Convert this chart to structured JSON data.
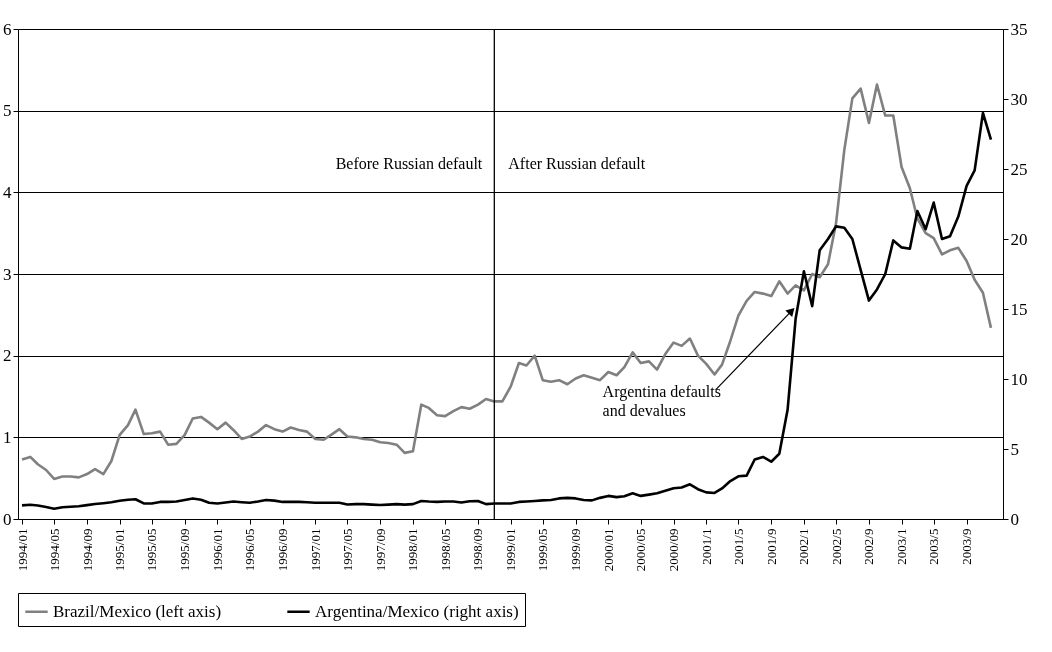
{
  "chart_data": {
    "type": "line",
    "x": [
      "1994-01",
      "1994-02",
      "1994-03",
      "1994-04",
      "1994-05",
      "1994-06",
      "1994-07",
      "1994-08",
      "1994-09",
      "1994-10",
      "1994-11",
      "1994-12",
      "1995-01",
      "1995-02",
      "1995-03",
      "1995-04",
      "1995-05",
      "1995-06",
      "1995-07",
      "1995-08",
      "1995-09",
      "1995-10",
      "1995-11",
      "1995-12",
      "1996-01",
      "1996-02",
      "1996-03",
      "1996-04",
      "1996-05",
      "1996-06",
      "1996-07",
      "1996-08",
      "1996-09",
      "1996-10",
      "1996-11",
      "1996-12",
      "1997-01",
      "1997-02",
      "1997-03",
      "1997-04",
      "1997-05",
      "1997-06",
      "1997-07",
      "1997-08",
      "1997-09",
      "1997-10",
      "1997-11",
      "1997-12",
      "1998-01",
      "1998-02",
      "1998-03",
      "1998-04",
      "1998-05",
      "1998-06",
      "1998-07",
      "1998-08",
      "1998-09",
      "1998-10",
      "1998-11",
      "1998-12",
      "1999-01",
      "1999-02",
      "1999-03",
      "1999-04",
      "1999-05",
      "1999-06",
      "1999-07",
      "1999-08",
      "1999-09",
      "1999-10",
      "1999-11",
      "1999-12",
      "2000-01",
      "2000-02",
      "2000-03",
      "2000-04",
      "2000-05",
      "2000-06",
      "2000-07",
      "2000-08",
      "2000-09",
      "2000-10",
      "2000-11",
      "2000-12",
      "2001-01",
      "2001-02",
      "2001-03",
      "2001-04",
      "2001-05",
      "2001-06",
      "2001-07",
      "2001-08",
      "2001-09",
      "2001-10",
      "2001-11",
      "2001-12",
      "2002-01",
      "2002-02",
      "2002-03",
      "2002-04",
      "2002-05",
      "2002-06",
      "2002-07",
      "2002-08",
      "2002-09",
      "2002-10",
      "2002-11",
      "2002-12",
      "2003-01",
      "2003-02",
      "2003-03",
      "2003-04",
      "2003-05",
      "2003-06",
      "2003-07",
      "2003-08",
      "2003-09",
      "2003-10",
      "2003-11",
      "2003-12"
    ],
    "series": [
      {
        "name": "Brazil/Mexico (left axis)",
        "color": "#808080",
        "values": [
          0.73,
          0.76,
          0.67,
          0.6,
          0.49,
          0.52,
          0.52,
          0.51,
          0.55,
          0.61,
          0.55,
          0.71,
          1.03,
          1.15,
          1.34,
          1.04,
          1.05,
          1.07,
          0.91,
          0.92,
          1.03,
          1.23,
          1.25,
          1.18,
          1.1,
          1.18,
          1.09,
          0.98,
          1.01,
          1.07,
          1.15,
          1.1,
          1.07,
          1.12,
          1.09,
          1.07,
          0.98,
          0.97,
          1.03,
          1.1,
          1.01,
          1.0,
          0.98,
          0.97,
          0.94,
          0.93,
          0.91,
          0.81,
          0.83,
          1.4,
          1.36,
          1.27,
          1.26,
          1.32,
          1.37,
          1.35,
          1.4,
          1.47,
          1.44,
          1.44,
          1.62,
          1.91,
          1.88,
          2.0,
          1.7,
          1.68,
          1.7,
          1.65,
          1.72,
          1.76,
          1.73,
          1.7,
          1.8,
          1.76,
          1.86,
          2.04,
          1.91,
          1.93,
          1.83,
          2.02,
          2.16,
          2.12,
          2.21,
          2.0,
          1.9,
          1.77,
          1.89,
          2.18,
          2.49,
          2.67,
          2.78,
          2.76,
          2.73,
          2.91,
          2.76,
          2.86,
          2.8,
          3.0,
          2.96,
          3.12,
          3.62,
          4.52,
          5.15,
          5.27,
          4.85,
          5.32,
          4.94,
          4.94,
          4.31,
          4.05,
          3.68,
          3.5,
          3.44,
          3.24,
          3.29,
          3.32,
          3.16,
          2.93,
          2.77,
          2.34
        ]
      },
      {
        "name": "Argentina/Mexico (right axis)",
        "color": "#000000",
        "axis": "y2",
        "values": [
          0.97,
          1.02,
          0.97,
          0.85,
          0.73,
          0.84,
          0.88,
          0.91,
          0.99,
          1.07,
          1.13,
          1.2,
          1.3,
          1.38,
          1.41,
          1.11,
          1.11,
          1.22,
          1.22,
          1.25,
          1.36,
          1.47,
          1.38,
          1.16,
          1.11,
          1.18,
          1.25,
          1.2,
          1.16,
          1.25,
          1.36,
          1.31,
          1.22,
          1.22,
          1.22,
          1.2,
          1.16,
          1.16,
          1.16,
          1.16,
          1.04,
          1.06,
          1.06,
          1.03,
          1.0,
          1.03,
          1.06,
          1.03,
          1.06,
          1.29,
          1.25,
          1.22,
          1.25,
          1.25,
          1.18,
          1.27,
          1.29,
          1.06,
          1.11,
          1.11,
          1.11,
          1.22,
          1.25,
          1.29,
          1.33,
          1.36,
          1.47,
          1.51,
          1.47,
          1.36,
          1.33,
          1.51,
          1.65,
          1.56,
          1.63,
          1.84,
          1.65,
          1.74,
          1.84,
          2.02,
          2.2,
          2.25,
          2.48,
          2.13,
          1.9,
          1.86,
          2.18,
          2.71,
          3.05,
          3.1,
          4.25,
          4.43,
          4.09,
          4.66,
          7.8,
          14.3,
          17.7,
          15.2,
          19.2,
          20.0,
          20.9,
          20.8,
          20.0,
          17.8,
          15.6,
          16.4,
          17.5,
          19.9,
          19.4,
          19.3,
          22.0,
          20.7,
          22.6,
          20.0,
          20.2,
          21.6,
          23.8,
          24.9,
          29.0,
          27.1
        ]
      }
    ],
    "xlim": [
      "1993-12-17",
      "2004-01-15"
    ],
    "xticks": [
      {
        "value": "1994-01",
        "label": "1994/01"
      },
      {
        "value": "1994-05",
        "label": "1994/05"
      },
      {
        "value": "1994-09",
        "label": "1994/09"
      },
      {
        "value": "1995-01",
        "label": "1995/01"
      },
      {
        "value": "1995-05",
        "label": "1995/05"
      },
      {
        "value": "1995-09",
        "label": "1995/09"
      },
      {
        "value": "1996-01",
        "label": "1996/01"
      },
      {
        "value": "1996-05",
        "label": "1996/05"
      },
      {
        "value": "1996-09",
        "label": "1996/09"
      },
      {
        "value": "1997-01",
        "label": "1997/01"
      },
      {
        "value": "1997-05",
        "label": "1997/05"
      },
      {
        "value": "1997-09",
        "label": "1997/09"
      },
      {
        "value": "1998-01",
        "label": "1998/01"
      },
      {
        "value": "1998-05",
        "label": "1998/05"
      },
      {
        "value": "1998-09",
        "label": "1998/09"
      },
      {
        "value": "1999-01",
        "label": "1999/01"
      },
      {
        "value": "1999-05",
        "label": "1999/05"
      },
      {
        "value": "1999-09",
        "label": "1999/09"
      },
      {
        "value": "2000-01",
        "label": "2000/01"
      },
      {
        "value": "2000-05",
        "label": "2000/05"
      },
      {
        "value": "2000-09",
        "label": "2000/09"
      },
      {
        "value": "2001-01",
        "label": "2001/1"
      },
      {
        "value": "2001-05",
        "label": "2001/5"
      },
      {
        "value": "2001-09",
        "label": "2001/9"
      },
      {
        "value": "2002-01",
        "label": "2002/1"
      },
      {
        "value": "2002-05",
        "label": "2002/5"
      },
      {
        "value": "2002-09",
        "label": "2002/9"
      },
      {
        "value": "2003-01",
        "label": "2003/1"
      },
      {
        "value": "2003-05",
        "label": "2003/5"
      },
      {
        "value": "2003-09",
        "label": "2003/9"
      }
    ],
    "ylim": [
      0,
      6
    ],
    "yticks": [
      0,
      1,
      2,
      3,
      4,
      5,
      6
    ],
    "y2lim": [
      0,
      35
    ],
    "y2ticks": [
      0,
      5,
      10,
      15,
      20,
      25,
      30,
      35
    ],
    "ref_lines": [
      {
        "axis": "x",
        "value": "1998-11",
        "color": "#000000"
      }
    ],
    "annotations": [
      "Before Russian default",
      "After Russian default",
      {
        "text": "Argentina defaults\nand devalues",
        "x": "2001-12",
        "y": 2.61
      }
    ],
    "grid": "y",
    "legend": "bottom",
    "marker": "none",
    "line_style": "solid"
  }
}
